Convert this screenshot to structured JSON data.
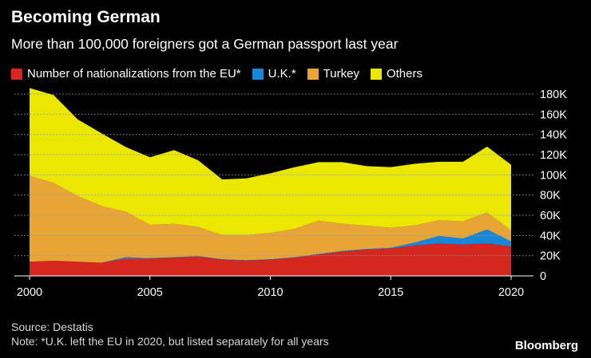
{
  "chart_data": {
    "type": "area",
    "stacked": true,
    "title": "Becoming German",
    "subtitle": "More than 100,000 foreigners got a German passport last year",
    "x": [
      2000,
      2001,
      2002,
      2003,
      2004,
      2005,
      2006,
      2007,
      2008,
      2009,
      2010,
      2011,
      2012,
      2013,
      2014,
      2015,
      2016,
      2017,
      2018,
      2019,
      2020
    ],
    "series": [
      {
        "name": "Number of nationalizations from the EU*",
        "color": "#d7261e",
        "values": [
          14000,
          15000,
          14000,
          13000,
          17000,
          17000,
          18000,
          19000,
          16000,
          15000,
          16000,
          18000,
          21000,
          24000,
          26000,
          27000,
          30000,
          32000,
          31000,
          32000,
          29000
        ]
      },
      {
        "name": "U.K.*",
        "color": "#1a86d8",
        "values": [
          0,
          0,
          0,
          0,
          1500,
          500,
          500,
          500,
          500,
          500,
          500,
          500,
          600,
          600,
          600,
          700,
          3000,
          7500,
          6000,
          14000,
          5000
        ]
      },
      {
        "name": "Turkey",
        "color": "#e8a536",
        "values": [
          85000,
          77000,
          65000,
          56000,
          45000,
          33000,
          33000,
          29000,
          24000,
          25000,
          26000,
          28000,
          33000,
          27000,
          23000,
          20000,
          17000,
          15500,
          17000,
          16500,
          11000
        ]
      },
      {
        "name": "Others",
        "color": "#ebe700",
        "values": [
          87000,
          87000,
          76000,
          72000,
          64000,
          67000,
          73000,
          66000,
          55000,
          56000,
          59000,
          61000,
          58000,
          61000,
          59000,
          60000,
          61000,
          58000,
          59000,
          65500,
          65000
        ]
      }
    ],
    "xlabel": "",
    "ylabel": "",
    "ylim": [
      0,
      180000
    ],
    "yticks": [
      0,
      20000,
      40000,
      60000,
      80000,
      100000,
      120000,
      140000,
      160000,
      180000
    ],
    "ytick_labels": [
      "0",
      "20K",
      "40K",
      "60K",
      "80K",
      "100K",
      "120K",
      "140K",
      "160K",
      "180K"
    ],
    "xticks": [
      2000,
      2005,
      2010,
      2015,
      2020
    ],
    "xtick_labels": [
      "2000",
      "2005",
      "2010",
      "2015",
      "2020"
    ],
    "grid": true,
    "legend_position": "top-left"
  },
  "footer": {
    "source": "Source: Destatis",
    "note": "Note: *U.K. left the EU in 2020, but listed separately for all years",
    "brand": "Bloomberg"
  }
}
